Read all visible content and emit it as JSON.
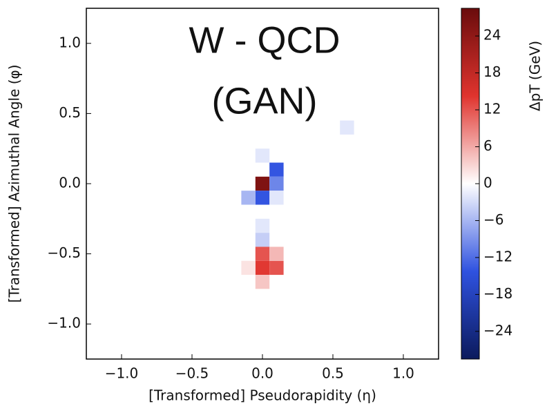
{
  "chart_data": {
    "type": "heatmap",
    "annotations": [
      "W - QCD",
      "(GAN)"
    ],
    "x_label": "[Transformed] Pseudorapidity (η)",
    "y_label": "[Transformed] Azimuthal Angle (φ)",
    "colorbar_label": "ΔpT (GeV)",
    "x": [
      0.0,
      0.1,
      0.1,
      0.0,
      -0.1,
      0.1,
      0.0,
      0.0,
      0.0,
      0.0,
      0.1,
      0.1,
      0.0,
      -0.1,
      0.6,
      0.0
    ],
    "y": [
      0.0,
      0.1,
      0.0,
      -0.1,
      -0.1,
      -0.1,
      -0.4,
      -0.3,
      -0.5,
      -0.6,
      -0.6,
      -0.5,
      -0.7,
      -0.6,
      0.4,
      0.2
    ],
    "values": [
      26,
      -14,
      -10,
      -14,
      -6,
      -2,
      -4,
      -2,
      12,
      14,
      12,
      5,
      4,
      2,
      -2,
      -2
    ],
    "xlim": [
      -1.25,
      1.25
    ],
    "ylim": [
      -1.25,
      1.25
    ],
    "xticks": [
      {
        "value": -1,
        "label": "−1.0"
      },
      {
        "value": -0.5,
        "label": "−0.5"
      },
      {
        "value": 0,
        "label": "0.0"
      },
      0.5,
      {
        "value": 1,
        "label": "1.0"
      }
    ],
    "yticks": [
      {
        "value": -1,
        "label": "−1.0"
      },
      {
        "value": -0.5,
        "label": "−0.5"
      },
      {
        "value": 0,
        "label": "0.0"
      },
      0.5,
      {
        "value": 1,
        "label": "1.0"
      }
    ],
    "clim": [
      -28.5,
      28.5
    ],
    "cticks": [
      {
        "value": -24,
        "label": "−24"
      },
      {
        "value": -18,
        "label": "−18"
      },
      {
        "value": -12,
        "label": "−12"
      },
      {
        "value": -6,
        "label": "−6"
      },
      0,
      6,
      12,
      18,
      24
    ],
    "colormap": [
      "#0b1a5c",
      "#2f52e0",
      "#ffffff",
      "#e0342e",
      "#6a0c0c"
    ]
  }
}
